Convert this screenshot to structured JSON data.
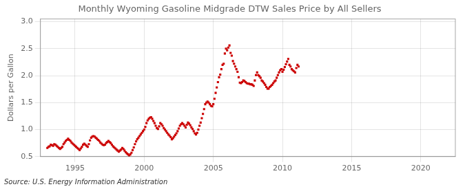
{
  "chart_data": {
    "type": "scatter",
    "title": "Monthly Wyoming Gasoline Midgrade DTW Sales Price by All Sellers",
    "y_label": "Dollars per Gallon",
    "annotations": [
      "Source: U.S. Energy Information Administration"
    ],
    "color": "#CC0000",
    "marker": "square",
    "grid": true,
    "xlim": [
      1992.5,
      2022.5
    ],
    "ylim": [
      0.5,
      3.05
    ],
    "xticks": [
      1995,
      2000,
      2005,
      2010,
      2015,
      2020
    ],
    "yticks": [
      0.5,
      {
        "value": 1.0,
        "label": "1.0"
      },
      1.5,
      {
        "value": 2.0,
        "label": "2.0"
      },
      2.5,
      {
        "value": 3.0,
        "label": "3.0"
      }
    ],
    "x": [
      1993.0,
      1993.083,
      1993.167,
      1993.25,
      1993.333,
      1993.417,
      1993.5,
      1993.583,
      1993.667,
      1993.75,
      1993.833,
      1993.917,
      1994.0,
      1994.083,
      1994.167,
      1994.25,
      1994.333,
      1994.417,
      1994.5,
      1994.583,
      1994.667,
      1994.75,
      1994.833,
      1994.917,
      1995.0,
      1995.083,
      1995.167,
      1995.25,
      1995.333,
      1995.417,
      1995.5,
      1995.583,
      1995.667,
      1995.75,
      1995.833,
      1995.917,
      1996.0,
      1996.083,
      1996.167,
      1996.25,
      1996.333,
      1996.417,
      1996.5,
      1996.583,
      1996.667,
      1996.75,
      1996.833,
      1996.917,
      1997.0,
      1997.083,
      1997.167,
      1997.25,
      1997.333,
      1997.417,
      1997.5,
      1997.583,
      1997.667,
      1997.75,
      1997.833,
      1997.917,
      1998.0,
      1998.083,
      1998.167,
      1998.25,
      1998.333,
      1998.417,
      1998.5,
      1998.583,
      1998.667,
      1998.75,
      1998.833,
      1998.917,
      1999.0,
      1999.083,
      1999.167,
      1999.25,
      1999.333,
      1999.417,
      1999.5,
      1999.583,
      1999.667,
      1999.75,
      1999.833,
      1999.917,
      2000.0,
      2000.083,
      2000.167,
      2000.25,
      2000.333,
      2000.417,
      2000.5,
      2000.583,
      2000.667,
      2000.75,
      2000.833,
      2000.917,
      2001.0,
      2001.083,
      2001.167,
      2001.25,
      2001.333,
      2001.417,
      2001.5,
      2001.583,
      2001.667,
      2001.75,
      2001.833,
      2001.917,
      2002.0,
      2002.083,
      2002.167,
      2002.25,
      2002.333,
      2002.417,
      2002.5,
      2002.583,
      2002.667,
      2002.75,
      2002.833,
      2002.917,
      2003.0,
      2003.083,
      2003.167,
      2003.25,
      2003.333,
      2003.417,
      2003.5,
      2003.583,
      2003.667,
      2003.75,
      2003.833,
      2003.917,
      2004.0,
      2004.083,
      2004.167,
      2004.25,
      2004.333,
      2004.417,
      2004.5,
      2004.583,
      2004.667,
      2004.75,
      2004.833,
      2004.917,
      2005.0,
      2005.083,
      2005.167,
      2005.25,
      2005.333,
      2005.417,
      2005.5,
      2005.583,
      2005.667,
      2005.75,
      2005.833,
      2005.917,
      2006.0,
      2006.083,
      2006.167,
      2006.25,
      2006.333,
      2006.417,
      2006.5,
      2006.583,
      2006.667,
      2006.75,
      2006.833,
      2006.917,
      2007.0,
      2007.083,
      2007.167,
      2007.25,
      2007.333,
      2007.417,
      2007.5,
      2007.583,
      2007.667,
      2007.75,
      2007.833,
      2007.917,
      2008.0,
      2008.083,
      2008.167,
      2008.25,
      2008.333,
      2008.417,
      2008.5,
      2008.583,
      2008.667,
      2008.75,
      2008.833,
      2008.917,
      2009.0,
      2009.083,
      2009.167,
      2009.25,
      2009.333,
      2009.417,
      2009.5,
      2009.583,
      2009.667,
      2009.75,
      2009.833,
      2009.917,
      2010.0,
      2010.083,
      2010.167,
      2010.25,
      2010.333,
      2010.417,
      2010.5,
      2010.583,
      2010.667,
      2010.75,
      2010.833,
      2010.917,
      2011.0,
      2011.083,
      2011.167
    ],
    "values": [
      0.66,
      0.68,
      0.69,
      0.72,
      0.71,
      0.7,
      0.73,
      0.72,
      0.7,
      0.68,
      0.66,
      0.64,
      0.66,
      0.68,
      0.73,
      0.76,
      0.79,
      0.81,
      0.83,
      0.81,
      0.79,
      0.76,
      0.74,
      0.72,
      0.7,
      0.68,
      0.66,
      0.64,
      0.62,
      0.65,
      0.68,
      0.72,
      0.74,
      0.72,
      0.7,
      0.68,
      0.73,
      0.8,
      0.85,
      0.87,
      0.88,
      0.87,
      0.85,
      0.83,
      0.81,
      0.79,
      0.76,
      0.74,
      0.72,
      0.71,
      0.72,
      0.75,
      0.77,
      0.79,
      0.77,
      0.75,
      0.72,
      0.69,
      0.67,
      0.65,
      0.63,
      0.61,
      0.59,
      0.61,
      0.63,
      0.66,
      0.64,
      0.61,
      0.58,
      0.56,
      0.54,
      0.52,
      0.54,
      0.57,
      0.62,
      0.67,
      0.73,
      0.78,
      0.82,
      0.85,
      0.88,
      0.91,
      0.94,
      0.97,
      1.0,
      1.05,
      1.12,
      1.17,
      1.2,
      1.22,
      1.23,
      1.2,
      1.16,
      1.12,
      1.07,
      1.03,
      1.01,
      1.06,
      1.12,
      1.1,
      1.07,
      1.03,
      1.0,
      0.97,
      0.94,
      0.91,
      0.89,
      0.86,
      0.82,
      0.84,
      0.87,
      0.9,
      0.93,
      0.97,
      1.02,
      1.07,
      1.1,
      1.12,
      1.1,
      1.07,
      1.04,
      1.09,
      1.13,
      1.11,
      1.08,
      1.04,
      1.01,
      0.97,
      0.93,
      0.91,
      0.94,
      1.0,
      1.07,
      1.13,
      1.21,
      1.29,
      1.38,
      1.47,
      1.5,
      1.52,
      1.5,
      1.47,
      1.44,
      1.43,
      1.47,
      1.57,
      1.68,
      1.78,
      1.88,
      1.97,
      2.02,
      2.12,
      2.2,
      2.22,
      2.41,
      2.5,
      2.47,
      2.52,
      2.56,
      2.42,
      2.37,
      2.27,
      2.22,
      2.17,
      2.12,
      2.07,
      1.97,
      1.87,
      1.86,
      1.88,
      1.91,
      1.9,
      1.88,
      1.86,
      1.85,
      1.85,
      1.84,
      1.84,
      1.83,
      1.81,
      1.91,
      2.01,
      2.06,
      2.01,
      1.99,
      1.96,
      1.91,
      1.89,
      1.86,
      1.83,
      1.79,
      1.76,
      1.76,
      1.79,
      1.81,
      1.83,
      1.86,
      1.89,
      1.91,
      1.96,
      2.01,
      2.06,
      2.1,
      2.12,
      2.07,
      2.11,
      2.16,
      2.21,
      2.26,
      2.31,
      2.2,
      2.17,
      2.12,
      2.1,
      2.08,
      2.06,
      2.14,
      2.2,
      2.17
    ]
  }
}
